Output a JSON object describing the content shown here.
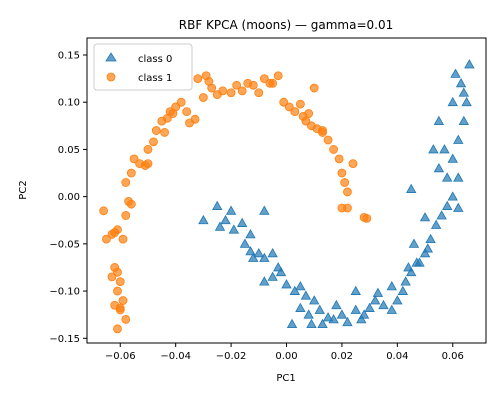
{
  "chart_data": {
    "type": "scatter",
    "title": "RBF KPCA (moons) — gamma=0.01",
    "xlabel": "PC1",
    "ylabel": "PC2",
    "xlim": [
      -0.072,
      0.072
    ],
    "ylim": [
      -0.155,
      0.168
    ],
    "xticks": [
      -0.06,
      -0.04,
      -0.02,
      0.0,
      0.02,
      0.04,
      0.06
    ],
    "xtick_labels": [
      "−0.06",
      "−0.04",
      "−0.02",
      "0.00",
      "0.02",
      "0.04",
      "0.06"
    ],
    "yticks": [
      -0.15,
      -0.1,
      -0.05,
      0.0,
      0.05,
      0.1,
      0.15
    ],
    "ytick_labels": [
      "−0.15",
      "−0.10",
      "−0.05",
      "0.00",
      "0.05",
      "0.10",
      "0.15"
    ],
    "grid": false,
    "legend": {
      "placement": "top-left"
    },
    "series": [
      {
        "name": "class 0",
        "marker": "triangle",
        "color": "#1f77b4",
        "points": [
          [
            -0.025,
            -0.01
          ],
          [
            -0.02,
            -0.015
          ],
          [
            -0.022,
            -0.025
          ],
          [
            -0.024,
            -0.032
          ],
          [
            -0.019,
            -0.035
          ],
          [
            -0.016,
            -0.028
          ],
          [
            -0.013,
            -0.04
          ],
          [
            -0.015,
            -0.05
          ],
          [
            -0.013,
            -0.058
          ],
          [
            -0.01,
            -0.06
          ],
          [
            -0.008,
            -0.065
          ],
          [
            -0.005,
            -0.06
          ],
          [
            -0.003,
            -0.075
          ],
          [
            -0.005,
            -0.085
          ],
          [
            -0.002,
            -0.08
          ],
          [
            0.0,
            -0.093
          ],
          [
            0.003,
            -0.1
          ],
          [
            0.005,
            -0.095
          ],
          [
            0.007,
            -0.105
          ],
          [
            0.005,
            -0.118
          ],
          [
            0.008,
            -0.125
          ],
          [
            0.012,
            -0.12
          ],
          [
            0.015,
            -0.128
          ],
          [
            0.013,
            -0.135
          ],
          [
            0.017,
            -0.13
          ],
          [
            0.02,
            -0.125
          ],
          [
            0.022,
            -0.133
          ],
          [
            0.025,
            -0.12
          ],
          [
            0.028,
            -0.125
          ],
          [
            0.03,
            -0.118
          ],
          [
            0.032,
            -0.11
          ],
          [
            0.035,
            -0.115
          ],
          [
            0.038,
            -0.12
          ],
          [
            0.04,
            -0.11
          ],
          [
            0.042,
            -0.1
          ],
          [
            0.043,
            -0.09
          ],
          [
            0.045,
            -0.08
          ],
          [
            0.047,
            -0.07
          ],
          [
            0.05,
            -0.06
          ],
          [
            0.052,
            -0.045
          ],
          [
            0.054,
            -0.03
          ],
          [
            0.056,
            -0.02
          ],
          [
            0.058,
            -0.01
          ],
          [
            0.06,
            0.0
          ],
          [
            0.062,
            0.02
          ],
          [
            0.06,
            0.04
          ],
          [
            0.062,
            0.06
          ],
          [
            0.064,
            0.08
          ],
          [
            0.065,
            0.1
          ],
          [
            0.063,
            0.12
          ],
          [
            0.066,
            0.14
          ],
          [
            0.061,
            0.13
          ],
          [
            0.055,
            0.03
          ],
          [
            0.057,
            0.05
          ],
          [
            0.051,
            -0.055
          ],
          [
            -0.008,
            -0.015
          ],
          [
            -0.03,
            -0.025
          ],
          [
            0.025,
            -0.1
          ],
          [
            0.01,
            -0.11
          ],
          [
            -0.012,
            -0.065
          ],
          [
            0.05,
            -0.022
          ],
          [
            0.046,
            -0.05
          ],
          [
            0.044,
            -0.075
          ],
          [
            0.038,
            -0.095
          ],
          [
            0.018,
            -0.115
          ],
          [
            0.002,
            -0.135
          ],
          [
            -0.008,
            -0.09
          ],
          [
            0.045,
            0.008
          ],
          [
            0.055,
            0.08
          ],
          [
            0.06,
            0.1
          ],
          [
            0.058,
            0.02
          ],
          [
            0.033,
            -0.102
          ],
          [
            0.027,
            -0.13
          ],
          [
            0.009,
            -0.135
          ],
          [
            0.048,
            -0.07
          ],
          [
            0.062,
            -0.012
          ],
          [
            0.053,
            0.05
          ],
          [
            0.064,
            0.11
          ]
        ]
      },
      {
        "name": "class 1",
        "marker": "circle",
        "color": "#ff7f0e",
        "points": [
          [
            -0.066,
            -0.015
          ],
          [
            -0.065,
            -0.045
          ],
          [
            -0.062,
            -0.038
          ],
          [
            -0.061,
            -0.035
          ],
          [
            -0.063,
            -0.04
          ],
          [
            -0.059,
            -0.045
          ],
          [
            -0.062,
            -0.075
          ],
          [
            -0.061,
            -0.08
          ],
          [
            -0.063,
            -0.085
          ],
          [
            -0.06,
            -0.09
          ],
          [
            -0.061,
            -0.1
          ],
          [
            -0.062,
            -0.115
          ],
          [
            -0.06,
            -0.118
          ],
          [
            -0.058,
            -0.13
          ],
          [
            -0.061,
            -0.14
          ],
          [
            -0.06,
            -0.12
          ],
          [
            -0.059,
            -0.11
          ],
          [
            -0.058,
            -0.02
          ],
          [
            -0.057,
            -0.005
          ],
          [
            -0.058,
            0.015
          ],
          [
            -0.056,
            0.025
          ],
          [
            -0.055,
            0.04
          ],
          [
            -0.053,
            0.035
          ],
          [
            -0.051,
            0.033
          ],
          [
            -0.05,
            0.05
          ],
          [
            -0.048,
            0.058
          ],
          [
            -0.047,
            0.07
          ],
          [
            -0.045,
            0.08
          ],
          [
            -0.043,
            0.083
          ],
          [
            -0.042,
            0.09
          ],
          [
            -0.04,
            0.095
          ],
          [
            -0.038,
            0.1
          ],
          [
            -0.036,
            0.09
          ],
          [
            -0.035,
            0.078
          ],
          [
            -0.033,
            0.082
          ],
          [
            -0.03,
            0.105
          ],
          [
            -0.029,
            0.128
          ],
          [
            -0.028,
            0.122
          ],
          [
            -0.027,
            0.115
          ],
          [
            -0.025,
            0.108
          ],
          [
            -0.023,
            0.112
          ],
          [
            -0.02,
            0.11
          ],
          [
            -0.018,
            0.118
          ],
          [
            -0.016,
            0.112
          ],
          [
            -0.014,
            0.12
          ],
          [
            -0.012,
            0.118
          ],
          [
            -0.01,
            0.11
          ],
          [
            -0.008,
            0.125
          ],
          [
            -0.005,
            0.12
          ],
          [
            -0.003,
            0.128
          ],
          [
            -0.001,
            0.1
          ],
          [
            0.001,
            0.095
          ],
          [
            0.003,
            0.09
          ],
          [
            0.005,
            0.098
          ],
          [
            0.007,
            0.08
          ],
          [
            0.009,
            0.075
          ],
          [
            0.011,
            0.072
          ],
          [
            0.013,
            0.07
          ],
          [
            0.015,
            0.06
          ],
          [
            0.017,
            0.05
          ],
          [
            0.019,
            0.04
          ],
          [
            0.02,
            0.025
          ],
          [
            0.021,
            0.015
          ],
          [
            0.022,
            0.005
          ],
          [
            0.022,
            -0.012
          ],
          [
            0.02,
            -0.012
          ],
          [
            0.028,
            -0.022
          ],
          [
            0.029,
            -0.023
          ],
          [
            0.01,
            0.115
          ],
          [
            0.013,
            0.068
          ],
          [
            -0.05,
            0.035
          ],
          [
            -0.041,
            0.088
          ],
          [
            -0.032,
            0.125
          ],
          [
            -0.044,
            0.068
          ],
          [
            -0.056,
            -0.008
          ],
          [
            0.008,
            0.088
          ],
          [
            0.024,
            0.035
          ],
          [
            0.006,
            0.085
          ],
          [
            -0.006,
            0.12
          ]
        ]
      }
    ]
  }
}
